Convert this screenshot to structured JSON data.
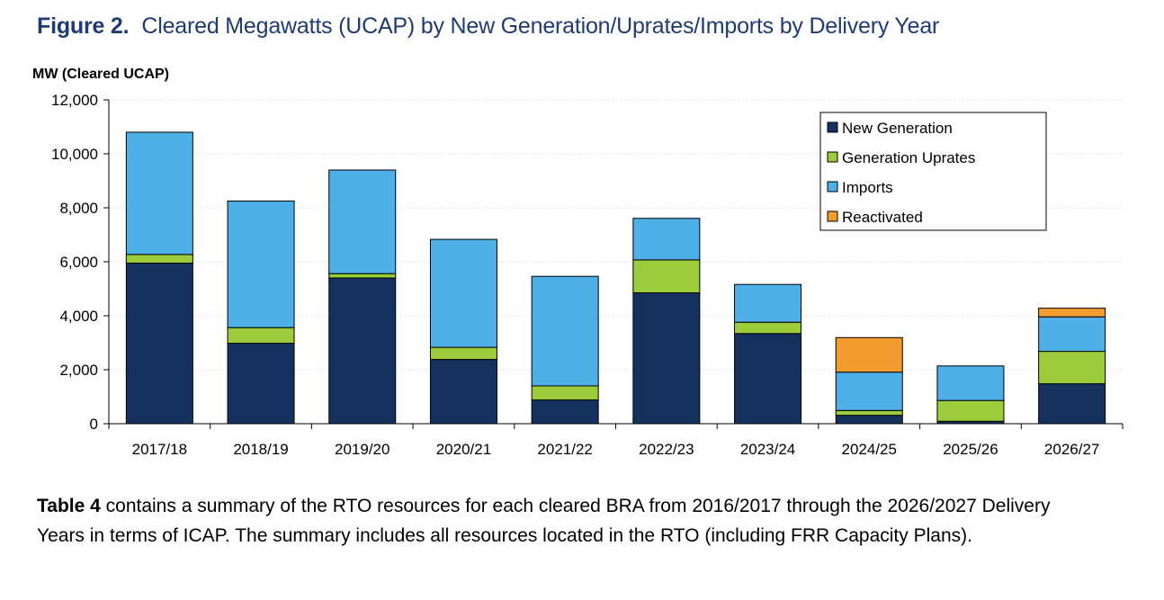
{
  "figure": {
    "label": "Figure 2.",
    "title": "Cleared Megawatts (UCAP) by New Generation/Uprates/Imports by Delivery Year"
  },
  "chart_data": {
    "type": "bar",
    "stacked": true,
    "ylabel": "MW (Cleared UCAP)",
    "xlabel": "",
    "ylim": [
      0,
      12000
    ],
    "yticks": [
      0,
      2000,
      4000,
      6000,
      8000,
      10000,
      12000
    ],
    "ytick_labels": [
      "0",
      "2,000",
      "4,000",
      "6,000",
      "8,000",
      "10,000",
      "12,000"
    ],
    "grid": true,
    "legend_position": "top-right",
    "categories": [
      "2017/18",
      "2018/19",
      "2019/20",
      "2020/21",
      "2021/22",
      "2022/23",
      "2023/24",
      "2024/25",
      "2025/26",
      "2026/27"
    ],
    "series": [
      {
        "name": "New Generation",
        "color": "#15315e",
        "values": [
          5950,
          2980,
          5400,
          2380,
          880,
          4850,
          3340,
          310,
          90,
          1480
        ]
      },
      {
        "name": "Generation Uprates",
        "color": "#9ccc3c",
        "values": [
          320,
          580,
          160,
          450,
          520,
          1220,
          420,
          180,
          770,
          1200
        ]
      },
      {
        "name": "Imports",
        "color": "#4fb0e8",
        "values": [
          4530,
          4690,
          3840,
          4000,
          4060,
          1540,
          1400,
          1420,
          1280,
          1280
        ]
      },
      {
        "name": "Reactivated",
        "color": "#f39d31",
        "values": [
          0,
          0,
          0,
          0,
          0,
          0,
          0,
          1280,
          0,
          320
        ]
      }
    ]
  },
  "paragraph": {
    "bold_part": "Table 4",
    "text": " contains a summary of the RTO resources for each cleared BRA from 2016/2017 through the 2026/2027 Delivery Years in terms of ICAP. The summary includes all resources located in the RTO (including FRR Capacity Plans)."
  }
}
